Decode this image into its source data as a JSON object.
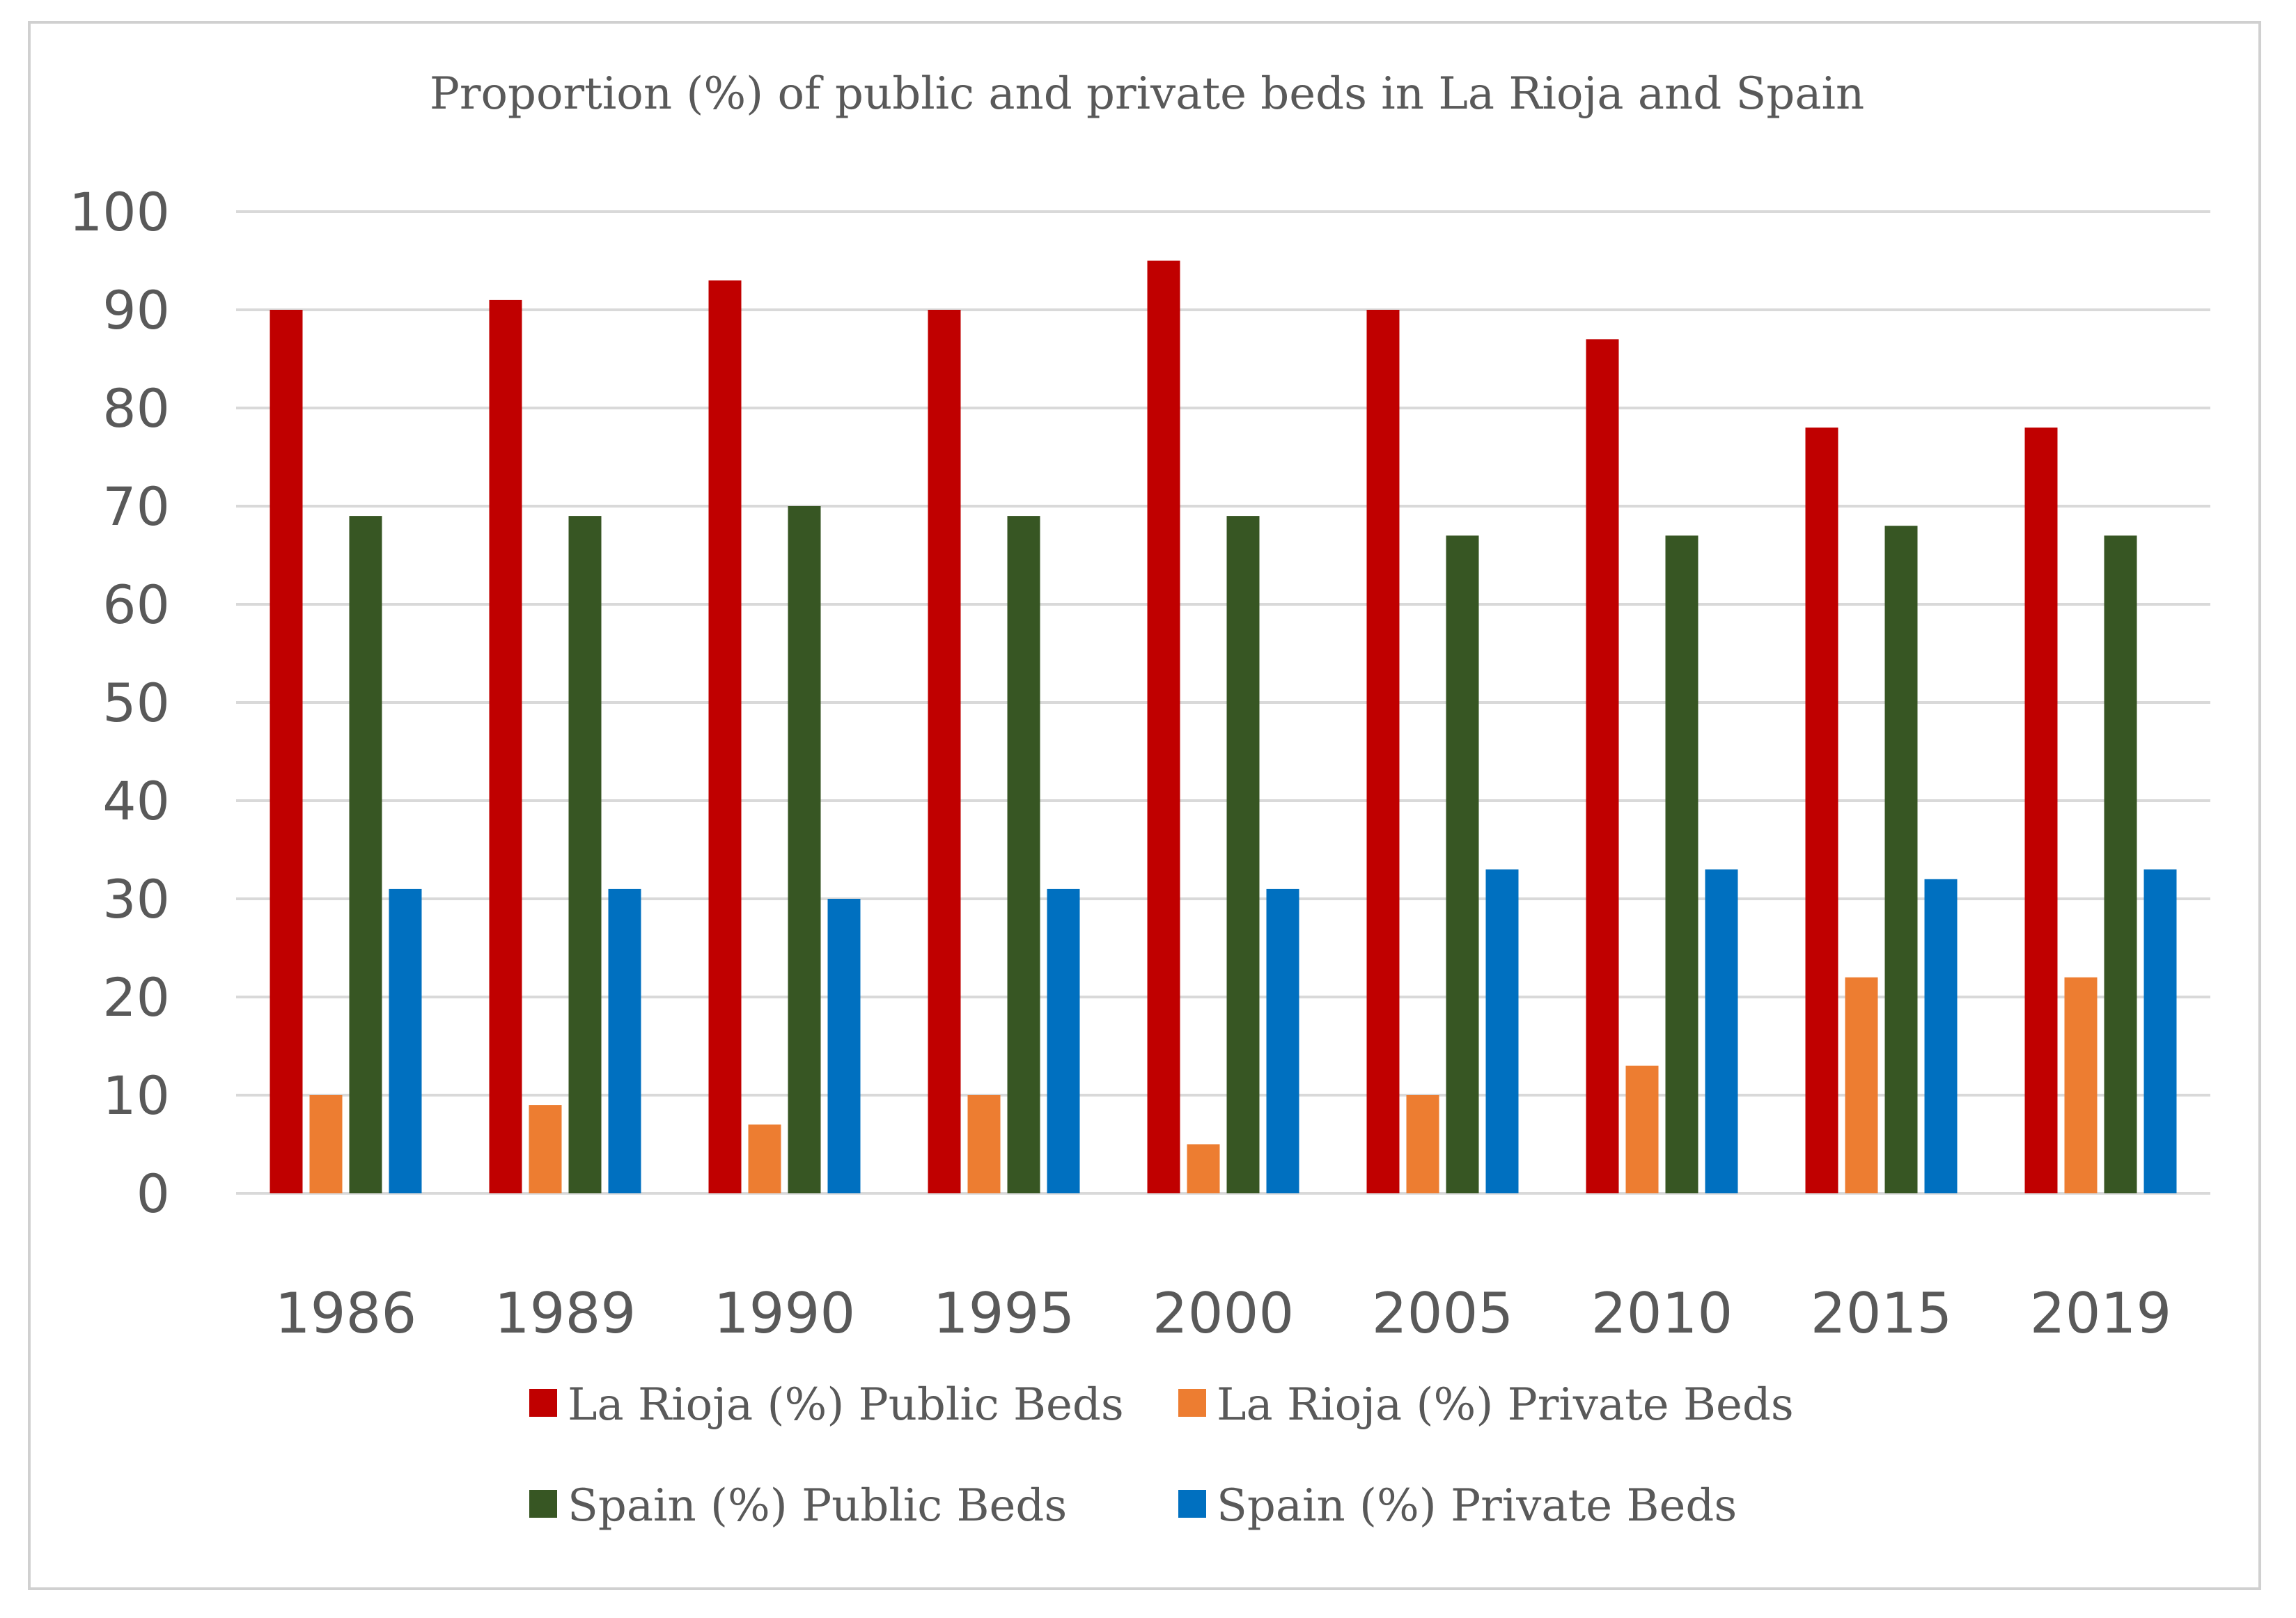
{
  "chart_data": {
    "type": "bar",
    "title": "Proportion  (%) of public and private beds in La Rioja and Spain",
    "xlabel": "",
    "ylabel": "",
    "ylim": [
      0,
      100
    ],
    "yticks": [
      0,
      10,
      20,
      30,
      40,
      50,
      60,
      70,
      80,
      90,
      100
    ],
    "grid": true,
    "legend_position": "bottom",
    "categories": [
      "1986",
      "1989",
      "1990",
      "1995",
      "2000",
      "2005",
      "2010",
      "2015",
      "2019"
    ],
    "series": [
      {
        "name": "La Rioja (%) Public Beds",
        "color": "#c00000",
        "values": [
          90,
          91,
          93,
          90,
          95,
          90,
          87,
          78,
          78
        ]
      },
      {
        "name": "La Rioja (%) Private Beds",
        "color": "#ed7d31",
        "values": [
          10,
          9,
          7,
          10,
          5,
          10,
          13,
          22,
          22
        ]
      },
      {
        "name": "Spain  (%) Public Beds",
        "color": "#375623",
        "values": [
          69,
          69,
          70,
          69,
          69,
          67,
          67,
          68,
          67
        ]
      },
      {
        "name": "Spain  (%) Private Beds",
        "color": "#0070c0",
        "values": [
          31,
          31,
          30,
          31,
          31,
          33,
          33,
          32,
          33
        ]
      }
    ]
  }
}
